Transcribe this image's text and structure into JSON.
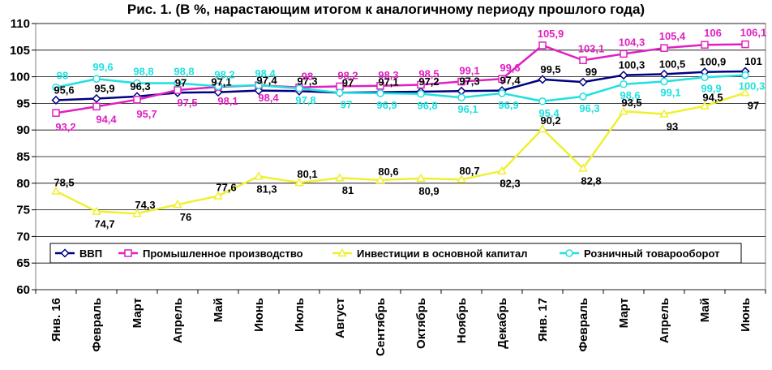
{
  "chart_data": {
    "type": "line",
    "title": "Рис. 1. (В %, нарастающим итогом к аналогичному периоду прошлого года)",
    "categories": [
      "Янв. 16",
      "Февраль",
      "Март",
      "Апрель",
      "Май",
      "Июнь",
      "Июль",
      "Август",
      "Сентябрь",
      "Октябрь",
      "Ноябрь",
      "Декабрь",
      "Янв. 17",
      "Февраль",
      "Март",
      "Апрель",
      "Май",
      "Июнь"
    ],
    "ylim": [
      60,
      110
    ],
    "yticks": [
      60,
      65,
      70,
      75,
      80,
      85,
      90,
      95,
      100,
      105,
      110
    ],
    "grid": true,
    "legend_position": "inside-bottom",
    "series": [
      {
        "name": "ВВП",
        "color": "#000080",
        "marker": "diamond",
        "label_color": "#000000",
        "values": [
          95.6,
          95.9,
          96.3,
          97,
          97.1,
          97.4,
          97.3,
          97,
          97.1,
          97.2,
          97.3,
          97.4,
          99.5,
          99,
          100.3,
          100.5,
          100.9,
          101
        ],
        "labels": [
          "95,6",
          "95,9",
          "96,3",
          "97",
          "97,1",
          "97,4",
          "97,3",
          "97",
          "97,1",
          "97,2",
          "97,3",
          "97,4",
          "99,5",
          "99",
          "100,3",
          "100,5",
          "100,9",
          "101"
        ]
      },
      {
        "name": "Промышленное производство",
        "color": "#e020c0",
        "marker": "square",
        "label_color": "#e020c0",
        "values": [
          93.2,
          94.4,
          95.7,
          97.5,
          98.1,
          98.4,
          98,
          98.2,
          98.3,
          98.5,
          99.1,
          99.6,
          105.9,
          103.1,
          104.3,
          105.4,
          106,
          106.1
        ],
        "labels": [
          "93,2",
          "94,4",
          "95,7",
          "97,5",
          "98,1",
          "98,4",
          "98",
          "98,2",
          "98,3",
          "98,5",
          "99,1",
          "99,6",
          "105,9",
          "103,1",
          "104,3",
          "105,4",
          "106",
          "106,1"
        ]
      },
      {
        "name": "Инвестиции в основной капитал",
        "color": "#f0f030",
        "marker": "triangle",
        "label_color": "#000000",
        "values": [
          78.5,
          74.7,
          74.3,
          76,
          77.6,
          81.3,
          80.1,
          81,
          80.6,
          80.9,
          80.7,
          82.3,
          90.2,
          82.8,
          93.5,
          93,
          94.5,
          97
        ],
        "labels": [
          "78,5",
          "74,7",
          "74,3",
          "76",
          "77,6",
          "81,3",
          "80,1",
          "81",
          "80,6",
          "80,9",
          "80,7",
          "82,3",
          "90,2",
          "82,8",
          "93,5",
          "93",
          "94,5",
          "97"
        ]
      },
      {
        "name": "Розничный товарооборот",
        "color": "#20e0e0",
        "marker": "circle",
        "label_color": "#20e0e0",
        "values": [
          98,
          99.6,
          98.8,
          98.8,
          98.2,
          98.4,
          97.8,
          97,
          96.9,
          96.8,
          96.1,
          96.9,
          95.4,
          96.3,
          98.6,
          99.1,
          99.9,
          100.3
        ],
        "labels": [
          "98",
          "99,6",
          "98,8",
          "98,8",
          "98,2",
          "98,4",
          "97,8",
          "97",
          "96,9",
          "96,8",
          "96,1",
          "96,9",
          "95,4",
          "96,3",
          "98,6",
          "99,1",
          "99,9",
          "100,3"
        ]
      }
    ]
  }
}
